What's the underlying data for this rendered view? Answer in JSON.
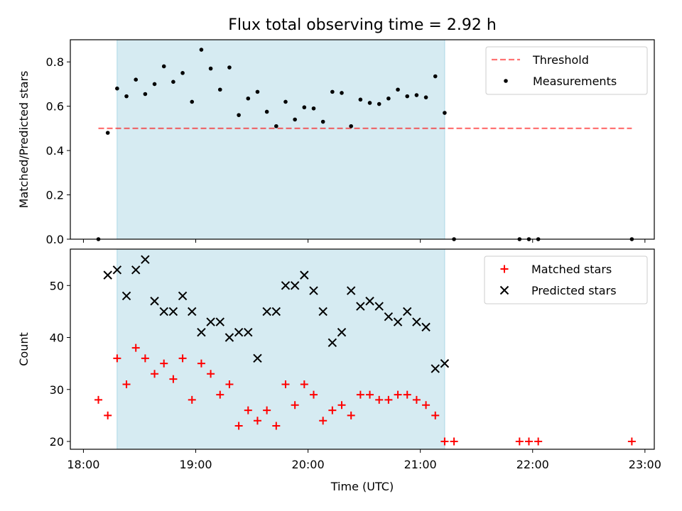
{
  "figure": {
    "title": "Flux total observing time = 2.92 h"
  },
  "colors": {
    "highlight": "#add8e6",
    "threshold": "#ff0000",
    "measurement": "#000000",
    "matched": "#ff0000",
    "predicted": "#000000"
  },
  "chart_data": [
    {
      "type": "scatter",
      "title": "Flux total observing time = 2.92 h",
      "xlabel": "",
      "ylabel": "Matched/Predicted stars",
      "xlim": [
        "17:53",
        "23:05"
      ],
      "ylim": [
        0,
        0.9
      ],
      "yticks": [
        0.0,
        0.2,
        0.4,
        0.6,
        0.8
      ],
      "ytick_labels": [
        "0.0",
        "0.2",
        "0.4",
        "0.6",
        "0.8"
      ],
      "xticks": [
        "18:00",
        "19:00",
        "20:00",
        "21:00",
        "22:00",
        "23:00"
      ],
      "shaded_span": [
        "18:18",
        "21:13"
      ],
      "legend_position": "top-right",
      "threshold": {
        "name": "Threshold",
        "x": [
          "18:08",
          "22:53"
        ],
        "y": 0.5
      },
      "series": [
        {
          "name": "Measurements",
          "x": [
            "18:08",
            "18:13",
            "18:18",
            "18:23",
            "18:28",
            "18:33",
            "18:38",
            "18:43",
            "18:48",
            "18:53",
            "18:58",
            "19:03",
            "19:08",
            "19:13",
            "19:18",
            "19:23",
            "19:28",
            "19:33",
            "19:38",
            "19:43",
            "19:48",
            "19:53",
            "19:58",
            "20:03",
            "20:08",
            "20:13",
            "20:18",
            "20:23",
            "20:28",
            "20:33",
            "20:38",
            "20:43",
            "20:48",
            "20:53",
            "20:58",
            "21:03",
            "21:08",
            "21:13",
            "21:18",
            "21:53",
            "21:58",
            "22:03",
            "22:53"
          ],
          "y": [
            0.0,
            0.48,
            0.68,
            0.645,
            0.72,
            0.655,
            0.7,
            0.78,
            0.71,
            0.75,
            0.62,
            0.855,
            0.77,
            0.675,
            0.775,
            0.56,
            0.635,
            0.665,
            0.575,
            0.51,
            0.62,
            0.54,
            0.595,
            0.59,
            0.53,
            0.665,
            0.66,
            0.51,
            0.63,
            0.615,
            0.61,
            0.635,
            0.675,
            0.645,
            0.65,
            0.64,
            0.735,
            0.57,
            0.0,
            0.0,
            0.0,
            0.0,
            0.0
          ]
        }
      ]
    },
    {
      "type": "scatter",
      "title": "",
      "xlabel": "Time (UTC)",
      "ylabel": "Count",
      "xlim": [
        "17:53",
        "23:05"
      ],
      "ylim": [
        18.5,
        57
      ],
      "yticks": [
        20,
        30,
        40,
        50
      ],
      "ytick_labels": [
        "20",
        "30",
        "40",
        "50"
      ],
      "xticks": [
        "18:00",
        "19:00",
        "20:00",
        "21:00",
        "22:00",
        "23:00"
      ],
      "xtick_labels": [
        "18:00",
        "19:00",
        "20:00",
        "21:00",
        "22:00",
        "23:00"
      ],
      "shaded_span": [
        "18:18",
        "21:13"
      ],
      "legend_position": "top-right",
      "series": [
        {
          "name": "Matched stars",
          "marker": "plus",
          "x": [
            "18:08",
            "18:13",
            "18:18",
            "18:23",
            "18:28",
            "18:33",
            "18:38",
            "18:43",
            "18:48",
            "18:53",
            "18:58",
            "19:03",
            "19:08",
            "19:13",
            "19:18",
            "19:23",
            "19:28",
            "19:33",
            "19:38",
            "19:43",
            "19:48",
            "19:53",
            "19:58",
            "20:03",
            "20:08",
            "20:13",
            "20:18",
            "20:23",
            "20:28",
            "20:33",
            "20:38",
            "20:43",
            "20:48",
            "20:53",
            "20:58",
            "21:03",
            "21:08",
            "21:13",
            "21:18",
            "21:53",
            "21:58",
            "22:03",
            "22:53"
          ],
          "y": [
            28,
            25,
            36,
            31,
            38,
            36,
            33,
            35,
            32,
            36,
            28,
            35,
            33,
            29,
            31,
            23,
            26,
            24,
            26,
            23,
            31,
            27,
            31,
            29,
            24,
            26,
            27,
            25,
            29,
            29,
            28,
            28,
            29,
            29,
            28,
            27,
            25,
            20,
            20,
            20,
            20,
            20,
            20
          ]
        },
        {
          "name": "Predicted stars",
          "marker": "x",
          "x": [
            "18:13",
            "18:18",
            "18:23",
            "18:28",
            "18:33",
            "18:38",
            "18:43",
            "18:48",
            "18:53",
            "18:58",
            "19:03",
            "19:08",
            "19:13",
            "19:18",
            "19:23",
            "19:28",
            "19:33",
            "19:38",
            "19:43",
            "19:48",
            "19:53",
            "19:58",
            "20:03",
            "20:08",
            "20:13",
            "20:18",
            "20:23",
            "20:28",
            "20:33",
            "20:38",
            "20:43",
            "20:48",
            "20:53",
            "20:58",
            "21:03",
            "21:08",
            "21:13"
          ],
          "y": [
            52,
            53,
            48,
            53,
            55,
            47,
            45,
            45,
            48,
            45,
            41,
            43,
            43,
            40,
            41,
            41,
            36,
            45,
            45,
            50,
            50,
            52,
            49,
            45,
            39,
            41,
            49,
            46,
            47,
            46,
            44,
            43,
            45,
            43,
            42,
            34,
            35
          ]
        }
      ]
    }
  ]
}
